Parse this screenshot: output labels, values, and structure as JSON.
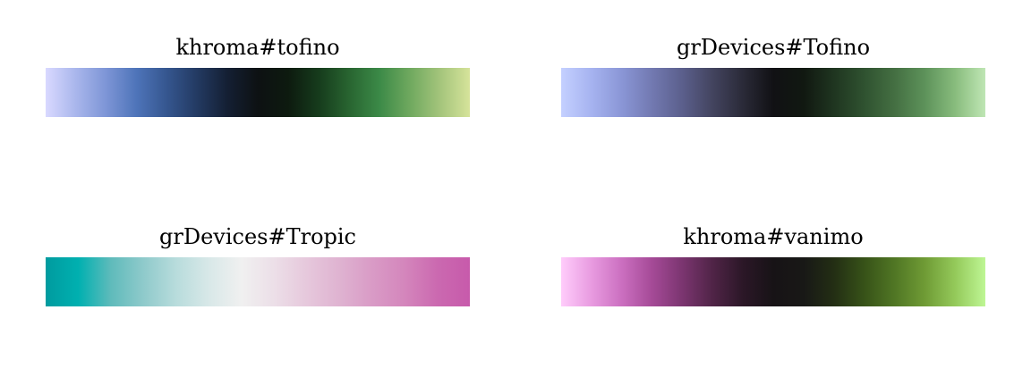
{
  "palettes": [
    {
      "title": "khroma#tofino",
      "colors": [
        "#d9d9ff",
        "#a9b6ec",
        "#7d95d6",
        "#4e74b9",
        "#35568f",
        "#233a62",
        "#141f33",
        "#0d1113",
        "#0d1a0f",
        "#163b1c",
        "#286430",
        "#3b8947",
        "#6ea85e",
        "#a3c47b",
        "#d6e39a"
      ]
    },
    {
      "title": "grDevices#Tofino",
      "colors": [
        "#c4d0ff",
        "#a6b3f0",
        "#8a96d6",
        "#7279b1",
        "#5b5f8c",
        "#43445f",
        "#2a2a38",
        "#111114",
        "#111811",
        "#1f3520",
        "#2f5230",
        "#446f42",
        "#5d925a",
        "#88bc7d",
        "#bfe6b4"
      ]
    },
    {
      "title": "grDevices#Tropic",
      "colors": [
        "#009b9f",
        "#00b0b0",
        "#5fbbbb",
        "#8fcacb",
        "#b8dcdc",
        "#d8e8e8",
        "#f0f0f0",
        "#ecdfe8",
        "#e6c8dc",
        "#dfb3d1",
        "#d99bc6",
        "#d486bc",
        "#cb69b0",
        "#c75aab"
      ]
    },
    {
      "title": "khroma#vanimo",
      "colors": [
        "#ffccfb",
        "#e89be0",
        "#cb6fc0",
        "#a54a97",
        "#7b3570",
        "#502447",
        "#2b1727",
        "#171316",
        "#181816",
        "#232e14",
        "#375218",
        "#507624",
        "#6f9b35",
        "#94c95a",
        "#bef694"
      ]
    }
  ]
}
